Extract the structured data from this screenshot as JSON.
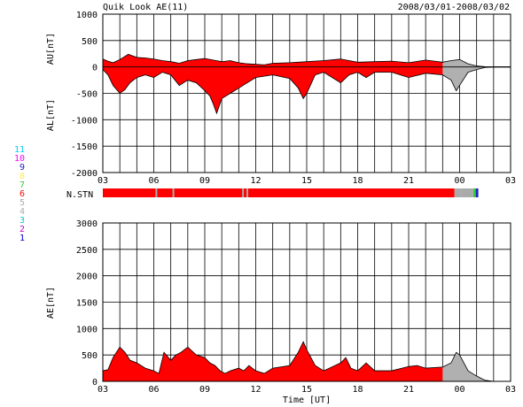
{
  "header": {
    "title": "Quik Look AE(11)",
    "date_range": "2008/03/01-2008/03/02"
  },
  "labels": {
    "au": "AU[nT]",
    "al": "AL[nT]",
    "nstn": "N.STN",
    "ae": "AE[nT]",
    "xlabel": "Time [UT]"
  },
  "station_legend": [
    {
      "n": "11",
      "color": "#00ccff"
    },
    {
      "n": "10",
      "color": "#ff00ff"
    },
    {
      "n": "9",
      "color": "#2020c0"
    },
    {
      "n": "8",
      "color": "#ffee44"
    },
    {
      "n": "7",
      "color": "#33cc33"
    },
    {
      "n": "6",
      "color": "#ff0000"
    },
    {
      "n": "5",
      "color": "#aaaaaa"
    },
    {
      "n": "4",
      "color": "#aaaaaa"
    },
    {
      "n": "3",
      "color": "#00cccc"
    },
    {
      "n": "2",
      "color": "#cc00cc"
    },
    {
      "n": "1",
      "color": "#0000cc"
    }
  ],
  "chart_data": [
    {
      "type": "area",
      "name": "AU/AL",
      "x_unit": "hours UT from 2008/03/01 03:00",
      "xlim": [
        0,
        24
      ],
      "ylim": [
        -2000,
        1000
      ],
      "yticks": [
        1000,
        500,
        0,
        -500,
        -1000,
        -1500,
        -2000
      ],
      "xticks": [
        "03",
        "06",
        "09",
        "12",
        "15",
        "18",
        "21",
        "00",
        "03"
      ],
      "grid": true,
      "au": {
        "x": [
          0,
          0.3,
          0.6,
          1.0,
          1.5,
          2.0,
          2.5,
          3.0,
          3.5,
          4.0,
          4.5,
          5.0,
          5.5,
          6.0,
          6.5,
          7.0,
          7.5,
          8.0,
          8.5,
          9.0,
          9.5,
          10.0,
          11.0,
          12.0,
          13.0,
          14.0,
          15.0,
          16.0,
          17.0,
          18.0,
          19.0,
          20.0,
          20.5,
          21.0,
          21.5,
          22.0,
          22.5,
          23.0,
          23.5,
          24.0
        ],
        "y": [
          150,
          110,
          80,
          140,
          240,
          180,
          170,
          150,
          120,
          100,
          70,
          120,
          140,
          160,
          130,
          100,
          120,
          80,
          60,
          50,
          40,
          70,
          80,
          100,
          120,
          150,
          90,
          100,
          110,
          80,
          130,
          90,
          120,
          140,
          60,
          20,
          5,
          0,
          0,
          0
        ]
      },
      "al": {
        "x": [
          0,
          0.3,
          0.6,
          1.0,
          1.3,
          1.6,
          2.0,
          2.5,
          3.0,
          3.5,
          4.0,
          4.5,
          5.0,
          5.5,
          6.0,
          6.3,
          6.5,
          6.7,
          7.0,
          7.5,
          8.0,
          8.5,
          9.0,
          10.0,
          11.0,
          11.5,
          11.8,
          12.0,
          12.5,
          13.0,
          14.0,
          14.5,
          15.0,
          15.5,
          16.0,
          17.0,
          18.0,
          19.0,
          20.0,
          20.5,
          20.8,
          21.0,
          21.5,
          22.0,
          22.5,
          23.0,
          24.0
        ],
        "y": [
          -50,
          -150,
          -350,
          -500,
          -430,
          -300,
          -200,
          -150,
          -200,
          -100,
          -150,
          -350,
          -250,
          -300,
          -450,
          -550,
          -700,
          -880,
          -600,
          -500,
          -400,
          -300,
          -200,
          -150,
          -220,
          -400,
          -600,
          -500,
          -150,
          -100,
          -300,
          -150,
          -100,
          -200,
          -100,
          -100,
          -200,
          -120,
          -150,
          -250,
          -450,
          -350,
          -100,
          -50,
          -10,
          0,
          0
        ]
      }
    },
    {
      "type": "bar",
      "name": "N.STN",
      "x_unit": "hours UT from 2008/03/01 03:00",
      "segments": [
        {
          "from": 0,
          "to": 20.7,
          "stations": 6
        },
        {
          "from": 20.7,
          "to": 21.1,
          "stations": 5
        },
        {
          "from": 21.1,
          "to": 21.8,
          "stations": 4
        },
        {
          "from": 21.8,
          "to": 21.95,
          "stations": 7
        },
        {
          "from": 21.95,
          "to": 22.1,
          "stations": 9
        }
      ],
      "gaps": [
        3.1,
        4.1,
        8.2,
        8.45
      ]
    },
    {
      "type": "area",
      "name": "AE",
      "x_unit": "hours UT from 2008/03/01 03:00",
      "xlim": [
        0,
        24
      ],
      "ylim": [
        0,
        3000
      ],
      "yticks": [
        3000,
        2500,
        2000,
        1500,
        1000,
        500,
        0
      ],
      "xticks": [
        "03",
        "06",
        "09",
        "12",
        "15",
        "18",
        "21",
        "00",
        "03"
      ],
      "grid": true,
      "ae": {
        "x": [
          0,
          0.3,
          0.6,
          1.0,
          1.3,
          1.6,
          2.0,
          2.5,
          3.0,
          3.3,
          3.6,
          4.0,
          4.3,
          4.6,
          5.0,
          5.5,
          6.0,
          6.3,
          6.6,
          6.9,
          7.2,
          7.5,
          8.0,
          8.3,
          8.6,
          9.0,
          9.5,
          10.0,
          11.0,
          11.5,
          11.8,
          12.0,
          12.5,
          13.0,
          14.0,
          14.3,
          14.6,
          15.0,
          15.5,
          16.0,
          17.0,
          18.0,
          18.5,
          19.0,
          20.0,
          20.5,
          20.8,
          21.0,
          21.5,
          22.0,
          22.5,
          23.0,
          24.0
        ],
        "y": [
          200,
          220,
          450,
          650,
          550,
          400,
          350,
          250,
          200,
          150,
          550,
          400,
          500,
          550,
          650,
          500,
          450,
          350,
          300,
          200,
          150,
          200,
          250,
          200,
          300,
          200,
          150,
          250,
          300,
          550,
          750,
          600,
          300,
          200,
          350,
          450,
          250,
          200,
          350,
          200,
          200,
          280,
          300,
          250,
          270,
          350,
          550,
          500,
          200,
          100,
          20,
          0,
          0
        ]
      }
    }
  ]
}
